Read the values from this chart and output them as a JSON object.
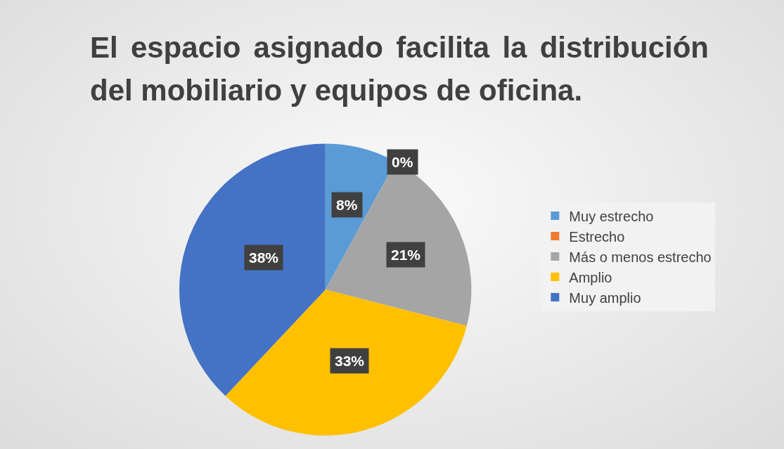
{
  "chart_data": {
    "type": "pie",
    "title": "El espacio asignado facilita la distribución del mobiliario y equipos de oficina.",
    "categories": [
      "Muy estrecho",
      "Estrecho",
      "Más o menos estrecho",
      "Amplio",
      "Muy amplio"
    ],
    "values": [
      8,
      0,
      21,
      33,
      38
    ],
    "colors": [
      "#5b9bd5",
      "#ed7d31",
      "#a5a5a5",
      "#ffc000",
      "#4472c4"
    ],
    "value_labels": [
      "8%",
      "0%",
      "21%",
      "33%",
      "38%"
    ],
    "legend": "right"
  }
}
